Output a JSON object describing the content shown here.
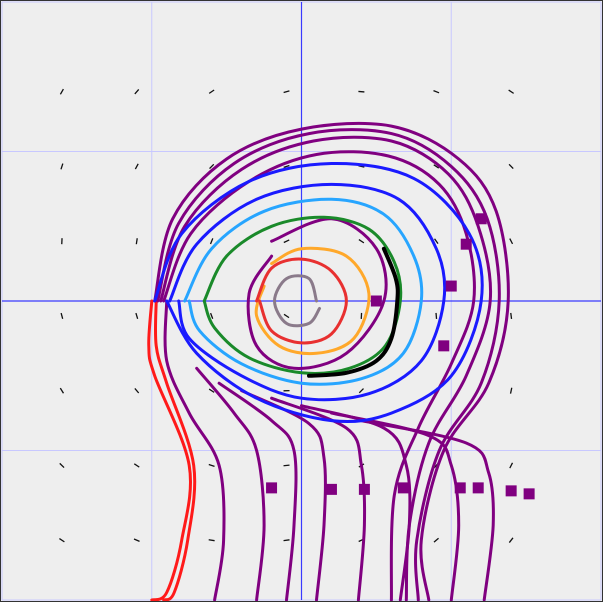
{
  "colors": {
    "background": "#eeeeee",
    "frame": "#333333",
    "grid": "#c8c8ff",
    "axis": "#3a3aff",
    "arrow": "#111111",
    "purple": "#800080",
    "red": "#ff1a1a",
    "blue": "#1a1aff",
    "green": "#1a8a2a",
    "lightblue": "#27a5ff",
    "black": "#000000",
    "orange": "#ffa82a",
    "crimson": "#e83030",
    "gray": "#8a7a8a"
  },
  "chart_data": {
    "type": "phase-portrait",
    "xlim": [
      -2,
      2
    ],
    "ylim": [
      -2,
      2
    ],
    "grid": true,
    "origin_axes": true,
    "vector_field": {
      "region_x": [
        -1.6,
        1.6
      ],
      "region_y": [
        -1.6,
        1.6
      ],
      "step": 0.5,
      "arrow_style": "small-dark-marks"
    },
    "trajectories": [
      {
        "color": "red",
        "points": [
          [
            -1.0,
            0.0
          ],
          [
            -1.02,
            -0.3
          ],
          [
            -0.98,
            -0.5
          ],
          [
            -0.75,
            -1.1
          ],
          [
            -0.8,
            -1.6
          ],
          [
            -0.9,
            -1.95
          ],
          [
            -1.0,
            -2.0
          ]
        ],
        "marker_at": null
      },
      {
        "color": "red",
        "points": [
          [
            -0.97,
            0.0
          ],
          [
            -0.97,
            -0.3
          ],
          [
            -0.9,
            -0.55
          ],
          [
            -0.72,
            -1.1
          ],
          [
            -0.76,
            -1.6
          ],
          [
            -0.85,
            -1.95
          ],
          [
            -0.92,
            -2.0
          ]
        ],
        "marker_at": null
      },
      {
        "color": "purple",
        "points": [
          [
            -0.98,
            0.0
          ],
          [
            -0.86,
            0.55
          ],
          [
            -0.5,
            0.95
          ],
          [
            0.0,
            1.15
          ],
          [
            0.6,
            1.17
          ],
          [
            1.05,
            0.95
          ],
          [
            1.3,
            0.6
          ],
          [
            1.38,
            0.0
          ],
          [
            1.25,
            -0.55
          ],
          [
            0.95,
            -1.0
          ],
          [
            0.8,
            -1.6
          ],
          [
            0.85,
            -2.0
          ]
        ],
        "marker_at": [
          1.2,
          0.55
        ]
      },
      {
        "color": "purple",
        "points": [
          [
            -0.96,
            0.0
          ],
          [
            -0.82,
            0.52
          ],
          [
            -0.45,
            0.92
          ],
          [
            0.05,
            1.12
          ],
          [
            0.6,
            1.12
          ],
          [
            1.0,
            0.9
          ],
          [
            1.24,
            0.55
          ],
          [
            1.32,
            0.0
          ],
          [
            1.2,
            -0.55
          ],
          [
            0.92,
            -1.0
          ],
          [
            0.77,
            -1.6
          ],
          [
            0.78,
            -2.0
          ]
        ],
        "marker_at": [
          1.1,
          0.38
        ]
      },
      {
        "color": "purple",
        "points": [
          [
            -0.94,
            0.0
          ],
          [
            -0.78,
            0.5
          ],
          [
            -0.4,
            0.88
          ],
          [
            0.08,
            1.07
          ],
          [
            0.6,
            1.07
          ],
          [
            0.98,
            0.85
          ],
          [
            1.18,
            0.5
          ],
          [
            1.26,
            0.0
          ],
          [
            1.1,
            -0.5
          ],
          [
            0.85,
            -0.95
          ],
          [
            0.72,
            -1.5
          ],
          [
            0.7,
            -2.0
          ]
        ],
        "marker_at": [
          1.0,
          0.1
        ]
      },
      {
        "color": "purple",
        "points": [
          [
            -0.92,
            0.0
          ],
          [
            -0.74,
            0.45
          ],
          [
            -0.35,
            0.8
          ],
          [
            0.1,
            0.98
          ],
          [
            0.58,
            0.97
          ],
          [
            0.92,
            0.78
          ],
          [
            1.1,
            0.45
          ],
          [
            1.15,
            0.0
          ],
          [
            1.0,
            -0.42
          ],
          [
            0.78,
            -0.85
          ],
          [
            0.62,
            -1.3
          ],
          [
            0.6,
            -2.0
          ]
        ],
        "marker_at": [
          0.95,
          -0.3
        ]
      },
      {
        "color": "purple",
        "points": [
          [
            -0.9,
            0.0
          ],
          [
            -0.9,
            -0.4
          ],
          [
            -0.75,
            -0.75
          ],
          [
            -0.55,
            -1.1
          ],
          [
            -0.52,
            -1.6
          ],
          [
            -0.58,
            -2.0
          ]
        ],
        "marker_at": [
          -0.2,
          -1.25
        ]
      },
      {
        "color": "purple",
        "points": [
          [
            -0.7,
            -0.45
          ],
          [
            -0.45,
            -0.75
          ],
          [
            -0.3,
            -1.0
          ],
          [
            -0.25,
            -1.5
          ],
          [
            -0.3,
            -2.0
          ]
        ],
        "marker_at": [
          0.2,
          -1.26
        ]
      },
      {
        "color": "purple",
        "points": [
          [
            -0.55,
            -0.55
          ],
          [
            -0.2,
            -0.8
          ],
          [
            -0.05,
            -1.0
          ],
          [
            -0.05,
            -1.5
          ],
          [
            -0.1,
            -2.0
          ]
        ],
        "marker_at": [
          0.42,
          -1.26
        ]
      },
      {
        "color": "purple",
        "points": [
          [
            -0.4,
            -0.6
          ],
          [
            0.05,
            -0.82
          ],
          [
            0.15,
            -1.05
          ],
          [
            0.15,
            -1.5
          ],
          [
            0.1,
            -2.0
          ]
        ],
        "marker_at": [
          0.68,
          -1.25
        ]
      },
      {
        "color": "purple",
        "points": [
          [
            -0.2,
            -0.65
          ],
          [
            0.3,
            -0.85
          ],
          [
            0.4,
            -1.1
          ],
          [
            0.42,
            -1.5
          ],
          [
            0.38,
            -2.0
          ]
        ],
        "marker_at": [
          1.06,
          -1.25
        ]
      },
      {
        "color": "purple",
        "points": [
          [
            0.0,
            -0.7
          ],
          [
            0.55,
            -0.85
          ],
          [
            0.7,
            -1.1
          ],
          [
            0.72,
            -1.5
          ],
          [
            0.66,
            -2.0
          ]
        ],
        "marker_at": [
          1.18,
          -1.25
        ]
      },
      {
        "color": "purple",
        "points": [
          [
            0.2,
            -0.75
          ],
          [
            0.85,
            -0.9
          ],
          [
            1.0,
            -1.1
          ],
          [
            1.05,
            -1.5
          ],
          [
            1.0,
            -2.0
          ]
        ],
        "marker_at": [
          1.4,
          -1.27
        ]
      },
      {
        "color": "purple",
        "points": [
          [
            0.4,
            -0.8
          ],
          [
            1.1,
            -0.95
          ],
          [
            1.25,
            -1.15
          ],
          [
            1.28,
            -1.5
          ],
          [
            1.22,
            -2.0
          ]
        ],
        "marker_at": [
          1.52,
          -1.29
        ]
      },
      {
        "color": "purple",
        "points": [
          [
            -0.2,
            0.4
          ],
          [
            0.2,
            0.55
          ],
          [
            0.5,
            0.35
          ],
          [
            0.55,
            0.0
          ],
          [
            0.3,
            -0.35
          ],
          [
            -0.05,
            -0.45
          ],
          [
            -0.3,
            -0.3
          ],
          [
            -0.35,
            0.05
          ],
          [
            -0.2,
            0.3
          ]
        ],
        "marker_at": [
          0.5,
          0.0
        ]
      },
      {
        "color": "blue",
        "points": [
          [
            -0.98,
            0.0
          ],
          [
            -0.8,
            0.45
          ],
          [
            -0.35,
            0.8
          ],
          [
            0.2,
            0.92
          ],
          [
            0.75,
            0.82
          ],
          [
            1.12,
            0.45
          ],
          [
            1.2,
            0.0
          ],
          [
            1.0,
            -0.5
          ],
          [
            0.6,
            -0.75
          ],
          [
            0.2,
            -0.8
          ],
          [
            -0.3,
            -0.65
          ],
          [
            -0.7,
            -0.35
          ],
          [
            -0.9,
            0.0
          ]
        ],
        "marker_at": null
      },
      {
        "color": "blue",
        "points": [
          [
            -0.88,
            0.0
          ],
          [
            -0.7,
            0.38
          ],
          [
            -0.3,
            0.68
          ],
          [
            0.2,
            0.78
          ],
          [
            0.65,
            0.68
          ],
          [
            0.9,
            0.35
          ],
          [
            0.95,
            0.0
          ],
          [
            0.8,
            -0.4
          ],
          [
            0.45,
            -0.62
          ],
          [
            0.0,
            -0.65
          ],
          [
            -0.4,
            -0.5
          ],
          [
            -0.75,
            -0.25
          ],
          [
            -0.82,
            0.0
          ]
        ],
        "marker_at": null
      },
      {
        "color": "lightblue",
        "points": [
          [
            -0.78,
            0.0
          ],
          [
            -0.6,
            0.35
          ],
          [
            -0.25,
            0.6
          ],
          [
            0.2,
            0.68
          ],
          [
            0.55,
            0.58
          ],
          [
            0.75,
            0.3
          ],
          [
            0.8,
            0.0
          ],
          [
            0.68,
            -0.35
          ],
          [
            0.4,
            -0.52
          ],
          [
            0.0,
            -0.55
          ],
          [
            -0.4,
            -0.42
          ],
          [
            -0.68,
            -0.2
          ],
          [
            -0.75,
            0.0
          ]
        ],
        "marker_at": null
      },
      {
        "color": "green",
        "points": [
          [
            -0.65,
            0.0
          ],
          [
            -0.5,
            0.3
          ],
          [
            -0.2,
            0.5
          ],
          [
            0.15,
            0.56
          ],
          [
            0.45,
            0.48
          ],
          [
            0.62,
            0.26
          ],
          [
            0.66,
            0.0
          ],
          [
            0.56,
            -0.3
          ],
          [
            0.32,
            -0.45
          ],
          [
            0.0,
            -0.48
          ],
          [
            -0.35,
            -0.38
          ],
          [
            -0.58,
            -0.18
          ],
          [
            -0.65,
            0.0
          ]
        ],
        "marker_at": null
      },
      {
        "color": "black",
        "points": [
          [
            0.55,
            0.35
          ],
          [
            0.63,
            0.15
          ],
          [
            0.64,
            0.0
          ],
          [
            0.6,
            -0.25
          ],
          [
            0.5,
            -0.4
          ],
          [
            0.3,
            -0.48
          ],
          [
            0.05,
            -0.5
          ]
        ],
        "marker_at": null
      },
      {
        "color": "orange",
        "points": [
          [
            -0.2,
            0.25
          ],
          [
            0.0,
            0.35
          ],
          [
            0.3,
            0.3
          ],
          [
            0.45,
            0.05
          ],
          [
            0.35,
            -0.25
          ],
          [
            0.1,
            -0.35
          ],
          [
            -0.15,
            -0.3
          ],
          [
            -0.3,
            -0.1
          ],
          [
            -0.25,
            0.1
          ]
        ],
        "marker_at": null
      },
      {
        "color": "crimson",
        "points": [
          [
            -0.3,
            0.0
          ],
          [
            -0.2,
            0.22
          ],
          [
            0.0,
            0.28
          ],
          [
            0.2,
            0.2
          ],
          [
            0.3,
            0.0
          ],
          [
            0.2,
            -0.22
          ],
          [
            0.0,
            -0.28
          ],
          [
            -0.2,
            -0.2
          ],
          [
            -0.28,
            0.0
          ]
        ],
        "marker_at": null
      },
      {
        "color": "gray",
        "points": [
          [
            0.1,
            0.0
          ],
          [
            0.05,
            0.15
          ],
          [
            -0.1,
            0.15
          ],
          [
            -0.18,
            0.0
          ],
          [
            -0.1,
            -0.15
          ],
          [
            0.05,
            -0.15
          ],
          [
            0.12,
            -0.05
          ]
        ],
        "marker_at": null
      }
    ]
  }
}
